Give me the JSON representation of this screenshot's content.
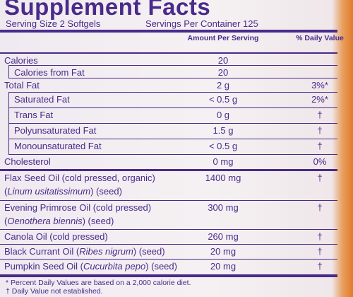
{
  "title": "Supplement Facts",
  "serving_size": "Serving Size 2 Softgels",
  "servings_per_container": "Servings Per Container 125",
  "columns": {
    "amount": "Amount Per Serving",
    "daily_value": "% Daily Value"
  },
  "rows": [
    {
      "name": [
        [
          {
            "text": "Calories"
          }
        ]
      ],
      "amount": "20"
    },
    {
      "name": [
        [
          {
            "text": "Calories from Fat"
          }
        ]
      ],
      "amount": "20"
    },
    {
      "name": [
        [
          {
            "text": "Total Fat"
          }
        ]
      ],
      "amount": "2 g",
      "daily_value": "3%*"
    },
    {
      "name": [
        [
          {
            "text": "Saturated Fat"
          }
        ]
      ],
      "amount": "< 0.5 g",
      "daily_value": "2%*"
    },
    {
      "name": [
        [
          {
            "text": "Trans Fat"
          }
        ]
      ],
      "amount": "0 g",
      "daily_value": "†"
    },
    {
      "name": [
        [
          {
            "text": "Polyunsaturated Fat"
          }
        ]
      ],
      "amount": "1.5 g",
      "daily_value": "†"
    },
    {
      "name": [
        [
          {
            "text": "Monounsaturated Fat"
          }
        ]
      ],
      "amount": "< 0.5 g",
      "daily_value": "†"
    },
    {
      "name": [
        [
          {
            "text": "Cholesterol"
          }
        ]
      ],
      "amount": "0 mg",
      "daily_value": "0%"
    },
    {
      "name": [
        [
          {
            "text": "Flax Seed Oil (cold pressed, organic)"
          }
        ],
        [
          {
            "text": "(",
            "italic": false
          },
          {
            "text": "Linum usitatissimum",
            "italic": true
          },
          {
            "text": ") (seed)"
          }
        ]
      ],
      "amount": "1400 mg",
      "daily_value": "†"
    },
    {
      "name": [
        [
          {
            "text": "Evening Primrose Oil (cold pressed)"
          }
        ],
        [
          {
            "text": "("
          },
          {
            "text": "Oenothera biennis",
            "italic": true
          },
          {
            "text": ") (seed)"
          }
        ]
      ],
      "amount": "300 mg",
      "daily_value": "†"
    },
    {
      "name": [
        [
          {
            "text": "Canola Oil (cold pressed)"
          }
        ]
      ],
      "amount": "260 mg",
      "daily_value": "†"
    },
    {
      "name": [
        [
          {
            "text": "Black Currant Oil ("
          },
          {
            "text": "Ribes nigrum",
            "italic": true
          },
          {
            "text": ") (seed)"
          }
        ]
      ],
      "amount": "20 mg",
      "daily_value": "†"
    },
    {
      "name": [
        [
          {
            "text": "Pumpkin Seed Oil ("
          },
          {
            "text": "Cucurbita pepo",
            "italic": true
          },
          {
            "text": ") (seed)"
          }
        ]
      ],
      "amount": "20 mg",
      "daily_value": "†"
    }
  ],
  "footnotes": [
    "* Percent Daily Values are based on a 2,000 calorie diet.",
    "† Daily Value not established."
  ]
}
